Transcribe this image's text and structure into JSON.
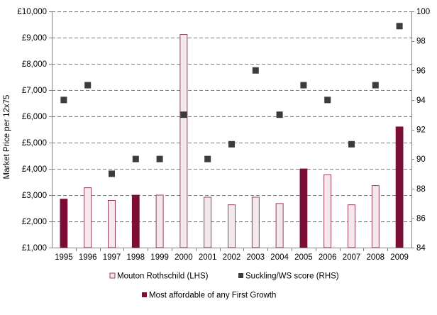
{
  "chart_data": {
    "type": "bar",
    "categories": [
      "1995",
      "1996",
      "1997",
      "1998",
      "1999",
      "2000",
      "2001",
      "2002",
      "2003",
      "2004",
      "2005",
      "2006",
      "2007",
      "2008",
      "2009"
    ],
    "series": [
      {
        "name": "Mouton Rothschild (LHS)",
        "kind": "bar",
        "axis": "left",
        "values": [
          2850,
          3280,
          2800,
          3000,
          3000,
          9120,
          2920,
          2630,
          2920,
          2680,
          4000,
          3780,
          2630,
          3360,
          5600
        ],
        "highlight": [
          true,
          false,
          false,
          true,
          false,
          false,
          false,
          false,
          false,
          false,
          true,
          false,
          false,
          false,
          true
        ]
      },
      {
        "name": "Suckling/WS score (RHS)",
        "kind": "scatter",
        "axis": "right",
        "values": [
          94,
          95,
          89,
          90,
          90,
          93,
          90,
          91,
          96,
          93,
          95,
          94,
          91,
          95,
          99
        ]
      }
    ],
    "highlight_legend": "Most affordable of any First Growth",
    "ylabel": "Market Price per 12x75",
    "y_left": {
      "min": 1000,
      "max": 10000,
      "step": 1000,
      "tick_labels": [
        "£1,000",
        "£2,000",
        "£3,000",
        "£4,000",
        "£5,000",
        "£6,000",
        "£7,000",
        "£8,000",
        "£9,000",
        "£10,000"
      ]
    },
    "y_right": {
      "min": 84,
      "max": 100,
      "step": 2,
      "tick_labels": [
        "84",
        "86",
        "88",
        "90",
        "92",
        "94",
        "96",
        "98",
        "100"
      ]
    },
    "grid": true,
    "legend_position": "bottom",
    "colors": {
      "bar_fill": "#f3e8ee",
      "bar_stroke": "#7b1538",
      "highlight_fill": "#7b0d36",
      "marker": "#3c3c3c",
      "grid": "#808080",
      "axis": "#808080"
    }
  }
}
